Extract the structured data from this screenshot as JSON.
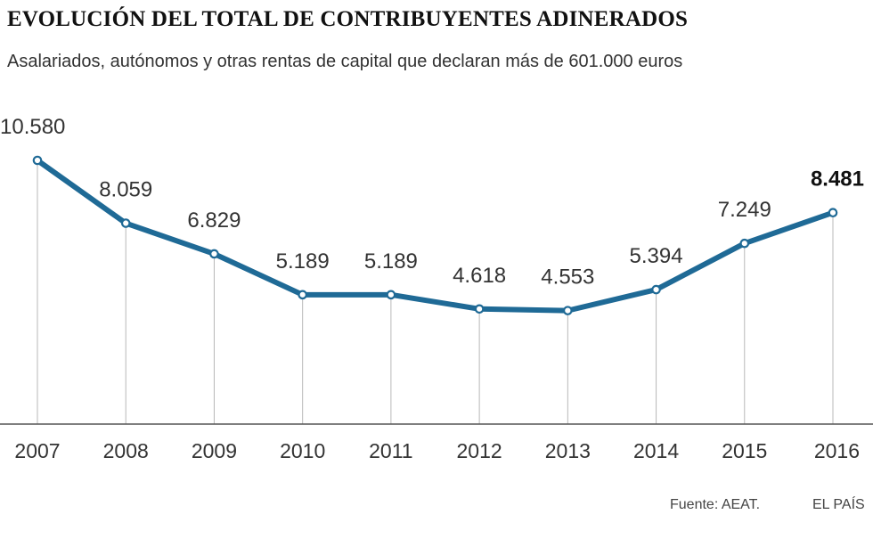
{
  "colors": {
    "line": "#1f6a96",
    "grid": "#b8b8b8",
    "axis": "#555555",
    "text": "#333333"
  },
  "chart_data": {
    "type": "line",
    "title": "EVOLUCIÓN DEL TOTAL DE CONTRIBUYENTES ADINERADOS",
    "subtitle": "Asalariados, autónomos y otras rentas de capital que declaran más de 601.000 euros",
    "categories": [
      "2007",
      "2008",
      "2009",
      "2010",
      "2011",
      "2012",
      "2013",
      "2014",
      "2015",
      "2016"
    ],
    "series": [
      {
        "name": "Contribuyentes",
        "values": [
          10580,
          8059,
          6829,
          5189,
          5189,
          4618,
          4553,
          5394,
          7249,
          8481
        ],
        "labels": [
          "10.580",
          "8.059",
          "6.829",
          "5.189",
          "5.189",
          "4.618",
          "4.553",
          "5.394",
          "7.249",
          "8.481"
        ]
      }
    ],
    "highlight_index": 9,
    "ylim": [
      0,
      10580
    ],
    "xlabel": "",
    "ylabel": "",
    "grid": "vertical"
  },
  "footer": {
    "source": "Fuente: AEAT.",
    "brand": "EL PAÍS"
  }
}
